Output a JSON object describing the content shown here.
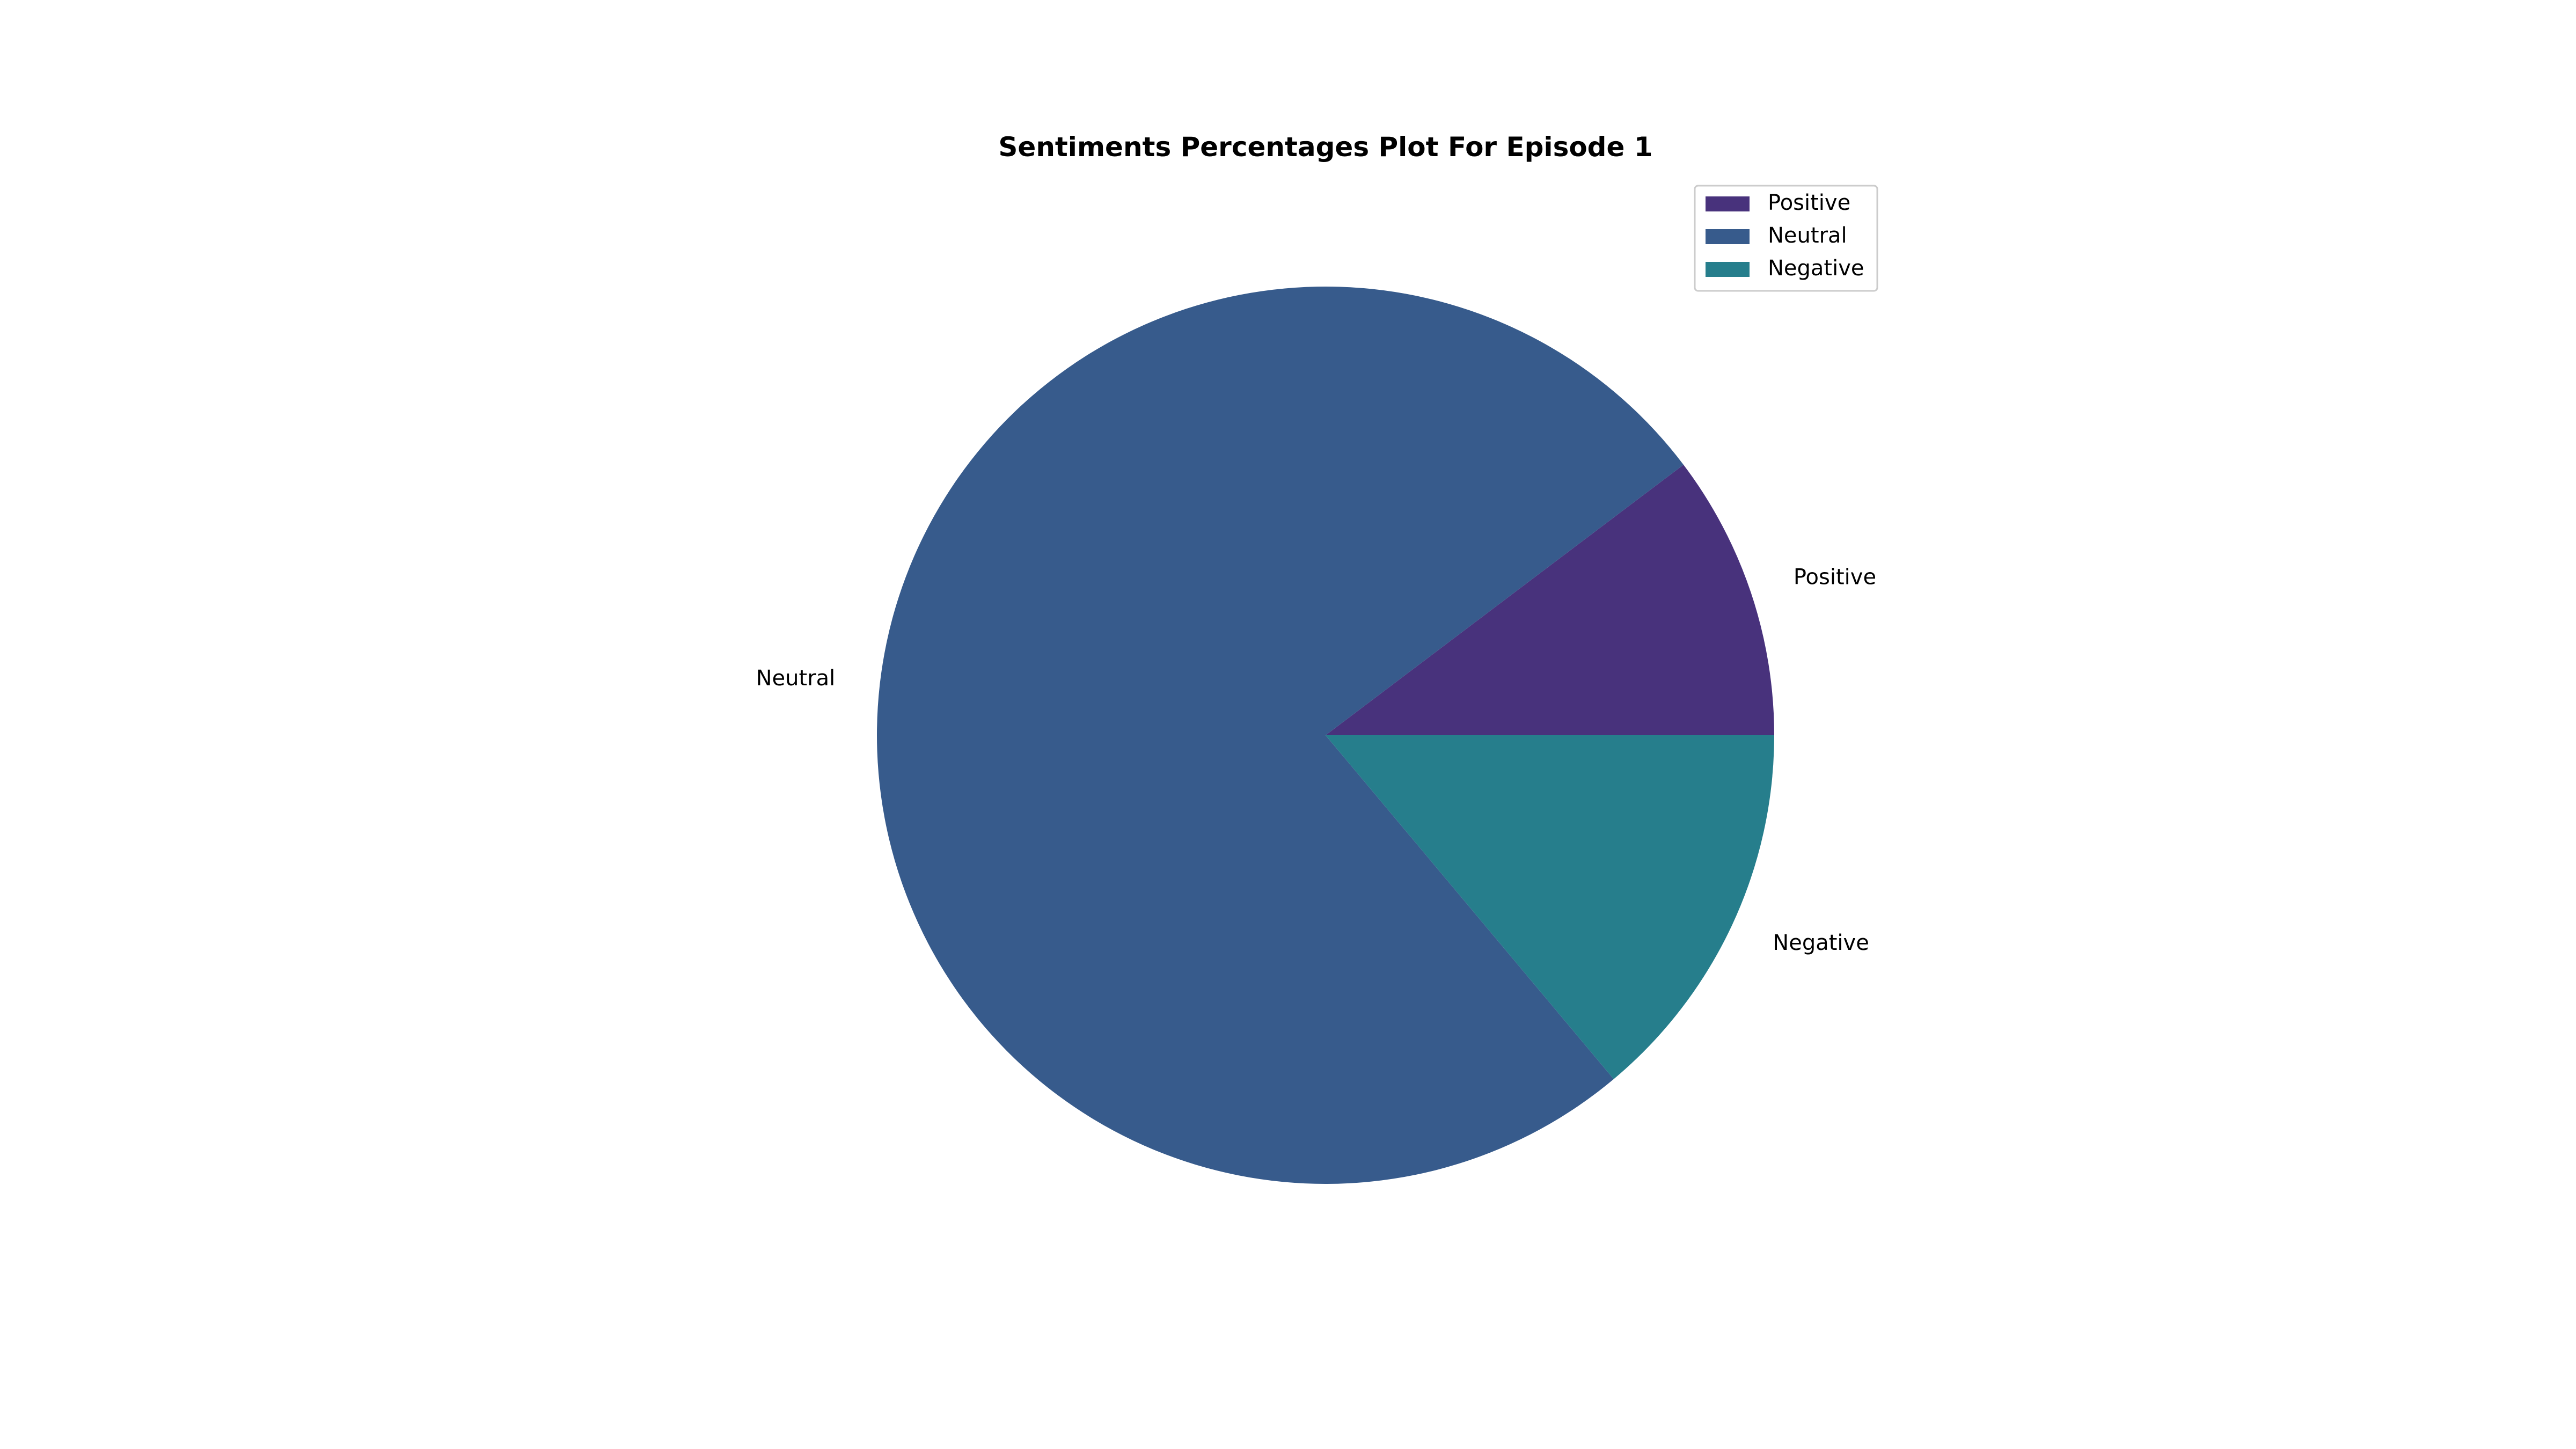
{
  "chart_data": {
    "type": "pie",
    "title": "Sentiments Percentages Plot For Episode 1",
    "categories": [
      "Positive",
      "Neutral",
      "Negative"
    ],
    "values": [
      10.3,
      75.8,
      13.9
    ],
    "colors": [
      "#48327c",
      "#375b8c",
      "#267e8c"
    ],
    "start_angle_deg": 0,
    "direction": "counterclockwise",
    "legend": {
      "position": "top-right",
      "entries": [
        "Positive",
        "Neutral",
        "Negative"
      ]
    },
    "slice_labels": [
      "Positive",
      "Neutral",
      "Negative"
    ]
  }
}
